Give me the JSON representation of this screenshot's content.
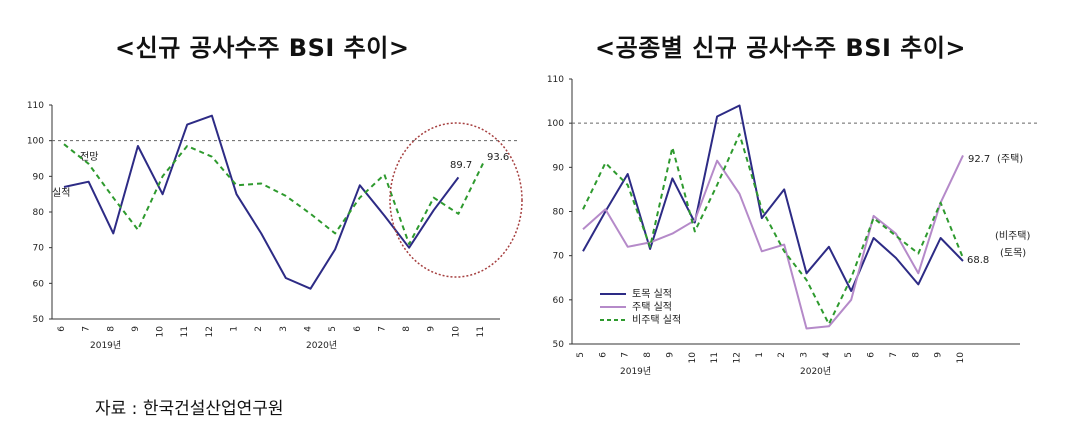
{
  "colors": {
    "navy": "#2d2b85",
    "green": "#2e9a2e",
    "purple": "#b58ac9",
    "circle": "#a64040",
    "ref": "#666666"
  },
  "source": "자료 : 한국건설산업연구원",
  "chart_data": [
    {
      "type": "line",
      "title": "<신규 공사수주 BSI 추이>",
      "x": [
        "6",
        "7",
        "8",
        "9",
        "10",
        "11",
        "12",
        "1",
        "2",
        "3",
        "4",
        "5",
        "6",
        "7",
        "8",
        "9",
        "10",
        "11"
      ],
      "year_labels": [
        "2019년",
        "2020년"
      ],
      "ylim": [
        50,
        110
      ],
      "yticks": [
        50,
        60,
        70,
        80,
        90,
        100,
        110
      ],
      "reference_line": 100,
      "series": [
        {
          "name": "실적",
          "color": "#2d2b85",
          "dash": false,
          "values": [
            87,
            88.5,
            74,
            98.5,
            85,
            104.5,
            107,
            85,
            74,
            61.5,
            58.5,
            69.5,
            87.5,
            79,
            70,
            80.5,
            89.7,
            null
          ]
        },
        {
          "name": "전망",
          "color": "#2e9a2e",
          "dash": true,
          "values": [
            99,
            93.5,
            84,
            75,
            90,
            98.5,
            95.5,
            87.5,
            88,
            84.5,
            79.5,
            74,
            84,
            90.5,
            71,
            84,
            79.5,
            93.6
          ]
        }
      ],
      "end_labels": [
        "89.7",
        "93.6"
      ]
    },
    {
      "type": "line",
      "title": "<공종별 신규 공사수주 BSI 추이>",
      "x": [
        "5",
        "6",
        "7",
        "8",
        "9",
        "10",
        "11",
        "12",
        "1",
        "2",
        "3",
        "4",
        "5",
        "6",
        "7",
        "8",
        "9",
        "10"
      ],
      "year_labels": [
        "2019년",
        "2020년"
      ],
      "ylim": [
        50,
        110
      ],
      "yticks": [
        50,
        60,
        70,
        80,
        90,
        100,
        110
      ],
      "reference_line": 100,
      "series": [
        {
          "name": "토목 실적",
          "color": "#2d2b85",
          "dash": false,
          "values": [
            71,
            80,
            88.5,
            71.5,
            87.5,
            77.5,
            101.5,
            104,
            78.5,
            85,
            66,
            72,
            62,
            74,
            69.5,
            63.5,
            74,
            68.8
          ]
        },
        {
          "name": "주택 실적",
          "color": "#b58ac9",
          "dash": false,
          "values": [
            76,
            80.5,
            72,
            73,
            75,
            78,
            91.5,
            84,
            71,
            72.5,
            53.5,
            54,
            60,
            79,
            75,
            66,
            82,
            92.7
          ]
        },
        {
          "name": "비주택 실적",
          "color": "#2e9a2e",
          "dash": true,
          "values": [
            80.5,
            91,
            86,
            72,
            94.5,
            75.5,
            86,
            97.5,
            80.5,
            71,
            64.5,
            54.5,
            65,
            78.5,
            74.5,
            70.5,
            82,
            69.5
          ]
        }
      ],
      "end_labels": [
        "92.7",
        "(주택)",
        "(비주택)",
        "(토목)",
        "68.8"
      ]
    }
  ]
}
